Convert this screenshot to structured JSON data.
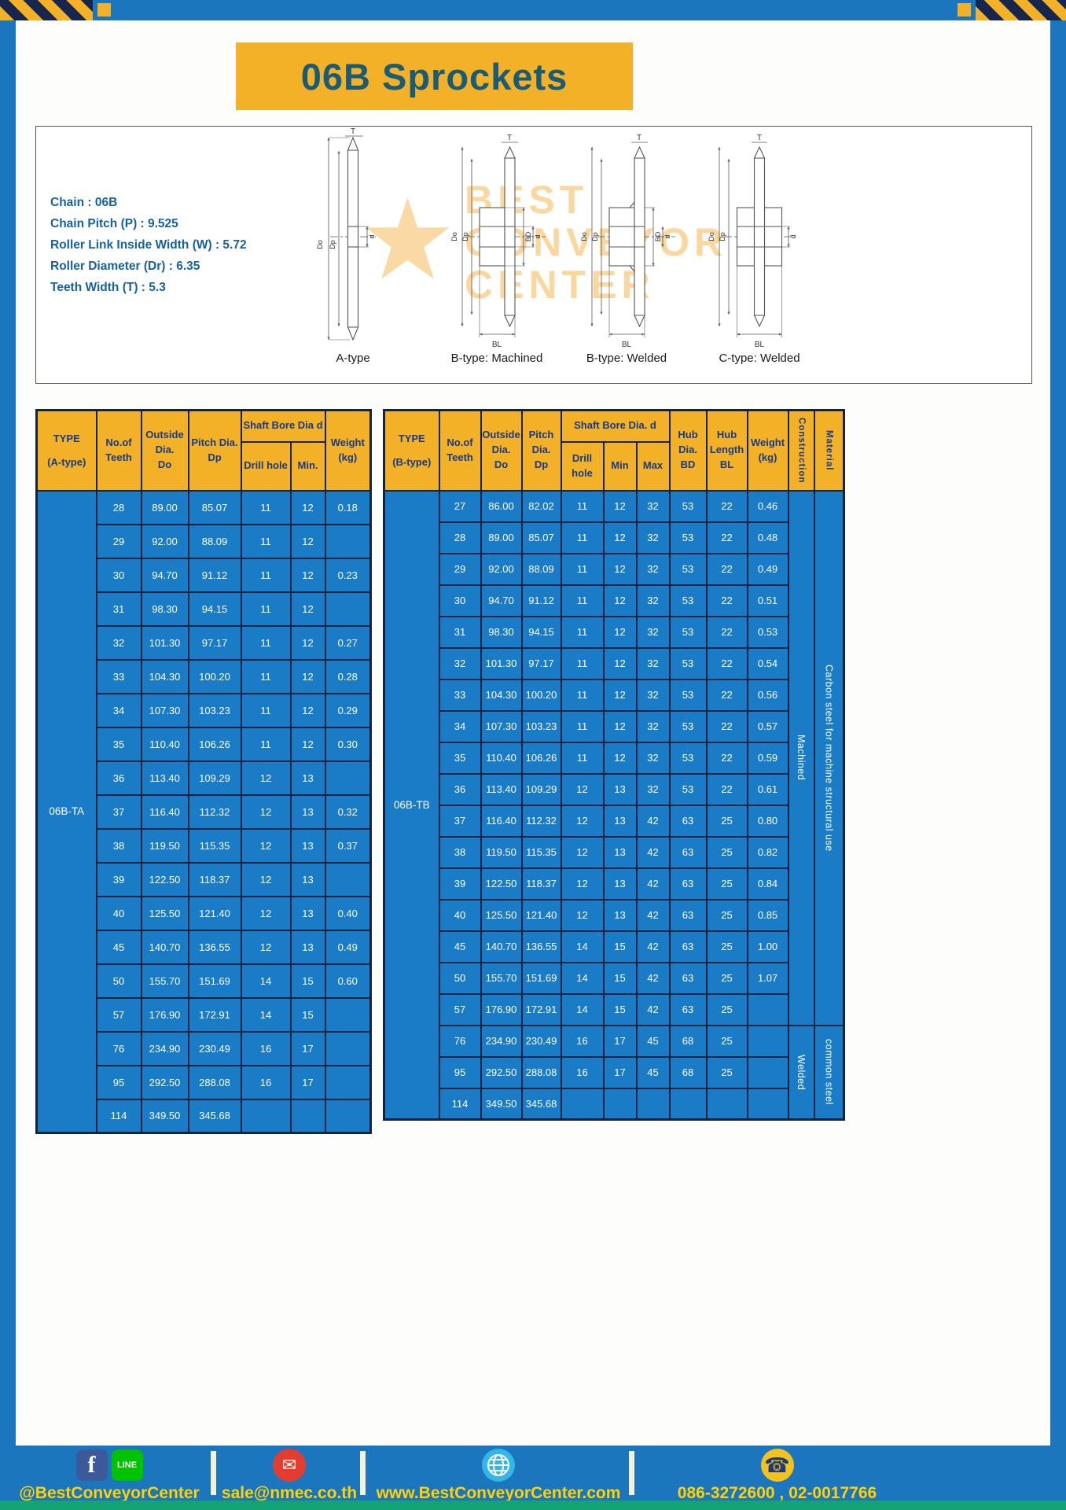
{
  "palette": {
    "page_blue": "#1b76bd",
    "banner_yellow": "#f2b126",
    "title_color": "#1a5b78",
    "header_text": "#173a8a",
    "body_blue": "#1a7cc6",
    "border_dark": "#14233f",
    "footer_text_yellow": "#ffd200",
    "teal_bar": "#14a374",
    "watermark_orange": "#f6a11e"
  },
  "title": "06B Sprockets",
  "specs": [
    "Chain : 06B",
    "Chain Pitch (P) : 9.525",
    "Roller Link Inside Width (W) : 5.72",
    "Roller Diameter (Dr) : 6.35",
    "Teeth Width (T) : 5.3"
  ],
  "diagram": {
    "labels": [
      "A-type",
      "B-type: Machined",
      "B-type: Welded",
      "C-type: Welded"
    ],
    "dims": {
      "t": "T",
      "outer": "Do",
      "pitch": "Dp",
      "bore": "d",
      "hub": "BD",
      "hub_len": "BL"
    },
    "watermark": "BEST\nCONVEYOR\nCENTER"
  },
  "table_a": {
    "headers": {
      "type": "TYPE\n(A-type)",
      "teeth": "No.of\nTeeth",
      "outside": "Outside\nDia.\nDo",
      "pitch": "Pitch Dia.\nDp",
      "bore_group": "Shaft Bore Dia d",
      "drill": "Drill hole",
      "min": "Min.",
      "weight": "Weight\n(kg)"
    },
    "type_value": "06B-TA",
    "rows": [
      [
        "28",
        "89.00",
        "85.07",
        "11",
        "12",
        "0.18"
      ],
      [
        "29",
        "92.00",
        "88.09",
        "11",
        "12",
        ""
      ],
      [
        "30",
        "94.70",
        "91.12",
        "11",
        "12",
        "0.23"
      ],
      [
        "31",
        "98.30",
        "94.15",
        "11",
        "12",
        ""
      ],
      [
        "32",
        "101.30",
        "97.17",
        "11",
        "12",
        "0.27"
      ],
      [
        "33",
        "104.30",
        "100.20",
        "11",
        "12",
        "0.28"
      ],
      [
        "34",
        "107.30",
        "103.23",
        "11",
        "12",
        "0.29"
      ],
      [
        "35",
        "110.40",
        "106.26",
        "11",
        "12",
        "0.30"
      ],
      [
        "36",
        "113.40",
        "109.29",
        "12",
        "13",
        ""
      ],
      [
        "37",
        "116.40",
        "112.32",
        "12",
        "13",
        "0.32"
      ],
      [
        "38",
        "119.50",
        "115.35",
        "12",
        "13",
        "0.37"
      ],
      [
        "39",
        "122.50",
        "118.37",
        "12",
        "13",
        ""
      ],
      [
        "40",
        "125.50",
        "121.40",
        "12",
        "13",
        "0.40"
      ],
      [
        "45",
        "140.70",
        "136.55",
        "12",
        "13",
        "0.49"
      ],
      [
        "50",
        "155.70",
        "151.69",
        "14",
        "15",
        "0.60"
      ],
      [
        "57",
        "176.90",
        "172.91",
        "14",
        "15",
        ""
      ],
      [
        "76",
        "234.90",
        "230.49",
        "16",
        "17",
        ""
      ],
      [
        "95",
        "292.50",
        "288.08",
        "16",
        "17",
        ""
      ],
      [
        "114",
        "349.50",
        "345.68",
        "",
        "",
        ""
      ]
    ]
  },
  "table_b": {
    "headers": {
      "type": "TYPE\n(B-type)",
      "teeth": "No.of\nTeeth",
      "outside": "Outside\nDia.\nDo",
      "pitch": "Pitch\nDia.\nDp",
      "bore_group": "Shaft Bore Dia. d",
      "drill": "Drill hole",
      "min": "Min",
      "max": "Max",
      "hub_dia": "Hub\nDia.\nBD",
      "hub_len": "Hub\nLength\nBL",
      "weight": "Weight\n(kg)",
      "construction": "Construction",
      "material": "Material"
    },
    "type_value": "06B-TB",
    "rows": [
      [
        "27",
        "86.00",
        "82.02",
        "11",
        "12",
        "32",
        "53",
        "22",
        "0.46"
      ],
      [
        "28",
        "89.00",
        "85.07",
        "11",
        "12",
        "32",
        "53",
        "22",
        "0.48"
      ],
      [
        "29",
        "92.00",
        "88.09",
        "11",
        "12",
        "32",
        "53",
        "22",
        "0.49"
      ],
      [
        "30",
        "94.70",
        "91.12",
        "11",
        "12",
        "32",
        "53",
        "22",
        "0.51"
      ],
      [
        "31",
        "98.30",
        "94.15",
        "11",
        "12",
        "32",
        "53",
        "22",
        "0.53"
      ],
      [
        "32",
        "101.30",
        "97.17",
        "11",
        "12",
        "32",
        "53",
        "22",
        "0.54"
      ],
      [
        "33",
        "104.30",
        "100.20",
        "11",
        "12",
        "32",
        "53",
        "22",
        "0.56"
      ],
      [
        "34",
        "107.30",
        "103.23",
        "11",
        "12",
        "32",
        "53",
        "22",
        "0.57"
      ],
      [
        "35",
        "110.40",
        "106.26",
        "11",
        "12",
        "32",
        "53",
        "22",
        "0.59"
      ],
      [
        "36",
        "113.40",
        "109.29",
        "12",
        "13",
        "32",
        "53",
        "22",
        "0.61"
      ],
      [
        "37",
        "116.40",
        "112.32",
        "12",
        "13",
        "42",
        "63",
        "25",
        "0.80"
      ],
      [
        "38",
        "119.50",
        "115.35",
        "12",
        "13",
        "42",
        "63",
        "25",
        "0.82"
      ],
      [
        "39",
        "122.50",
        "118.37",
        "12",
        "13",
        "42",
        "63",
        "25",
        "0.84"
      ],
      [
        "40",
        "125.50",
        "121.40",
        "12",
        "13",
        "42",
        "63",
        "25",
        "0.85"
      ],
      [
        "45",
        "140.70",
        "136.55",
        "14",
        "15",
        "42",
        "63",
        "25",
        "1.00"
      ],
      [
        "50",
        "155.70",
        "151.69",
        "14",
        "15",
        "42",
        "63",
        "25",
        "1.07"
      ],
      [
        "57",
        "176.90",
        "172.91",
        "14",
        "15",
        "42",
        "63",
        "25",
        ""
      ],
      [
        "76",
        "234.90",
        "230.49",
        "16",
        "17",
        "45",
        "68",
        "25",
        ""
      ],
      [
        "95",
        "292.50",
        "288.08",
        "16",
        "17",
        "45",
        "68",
        "25",
        ""
      ],
      [
        "114",
        "349.50",
        "345.68",
        "",
        "",
        "",
        "",
        "",
        ""
      ]
    ],
    "construction": [
      {
        "label": "Machined",
        "from": 0,
        "rows": 17
      },
      {
        "label": "Welded",
        "from": 17,
        "rows": 3
      }
    ],
    "material": [
      {
        "label": "Carbon steel for machine structural use",
        "from": 0,
        "rows": 17
      },
      {
        "label": "common steel",
        "from": 17,
        "rows": 3
      }
    ]
  },
  "footer": {
    "social_handle": "@BestConveyorCenter",
    "email": "sale@nmec.co.th",
    "website": "www.BestConveyorCenter.com",
    "phones": "086-3272600 , 02-0017766",
    "icons": {
      "facebook": "f",
      "line": "LINE",
      "email": "✉",
      "phone": "☎"
    }
  }
}
